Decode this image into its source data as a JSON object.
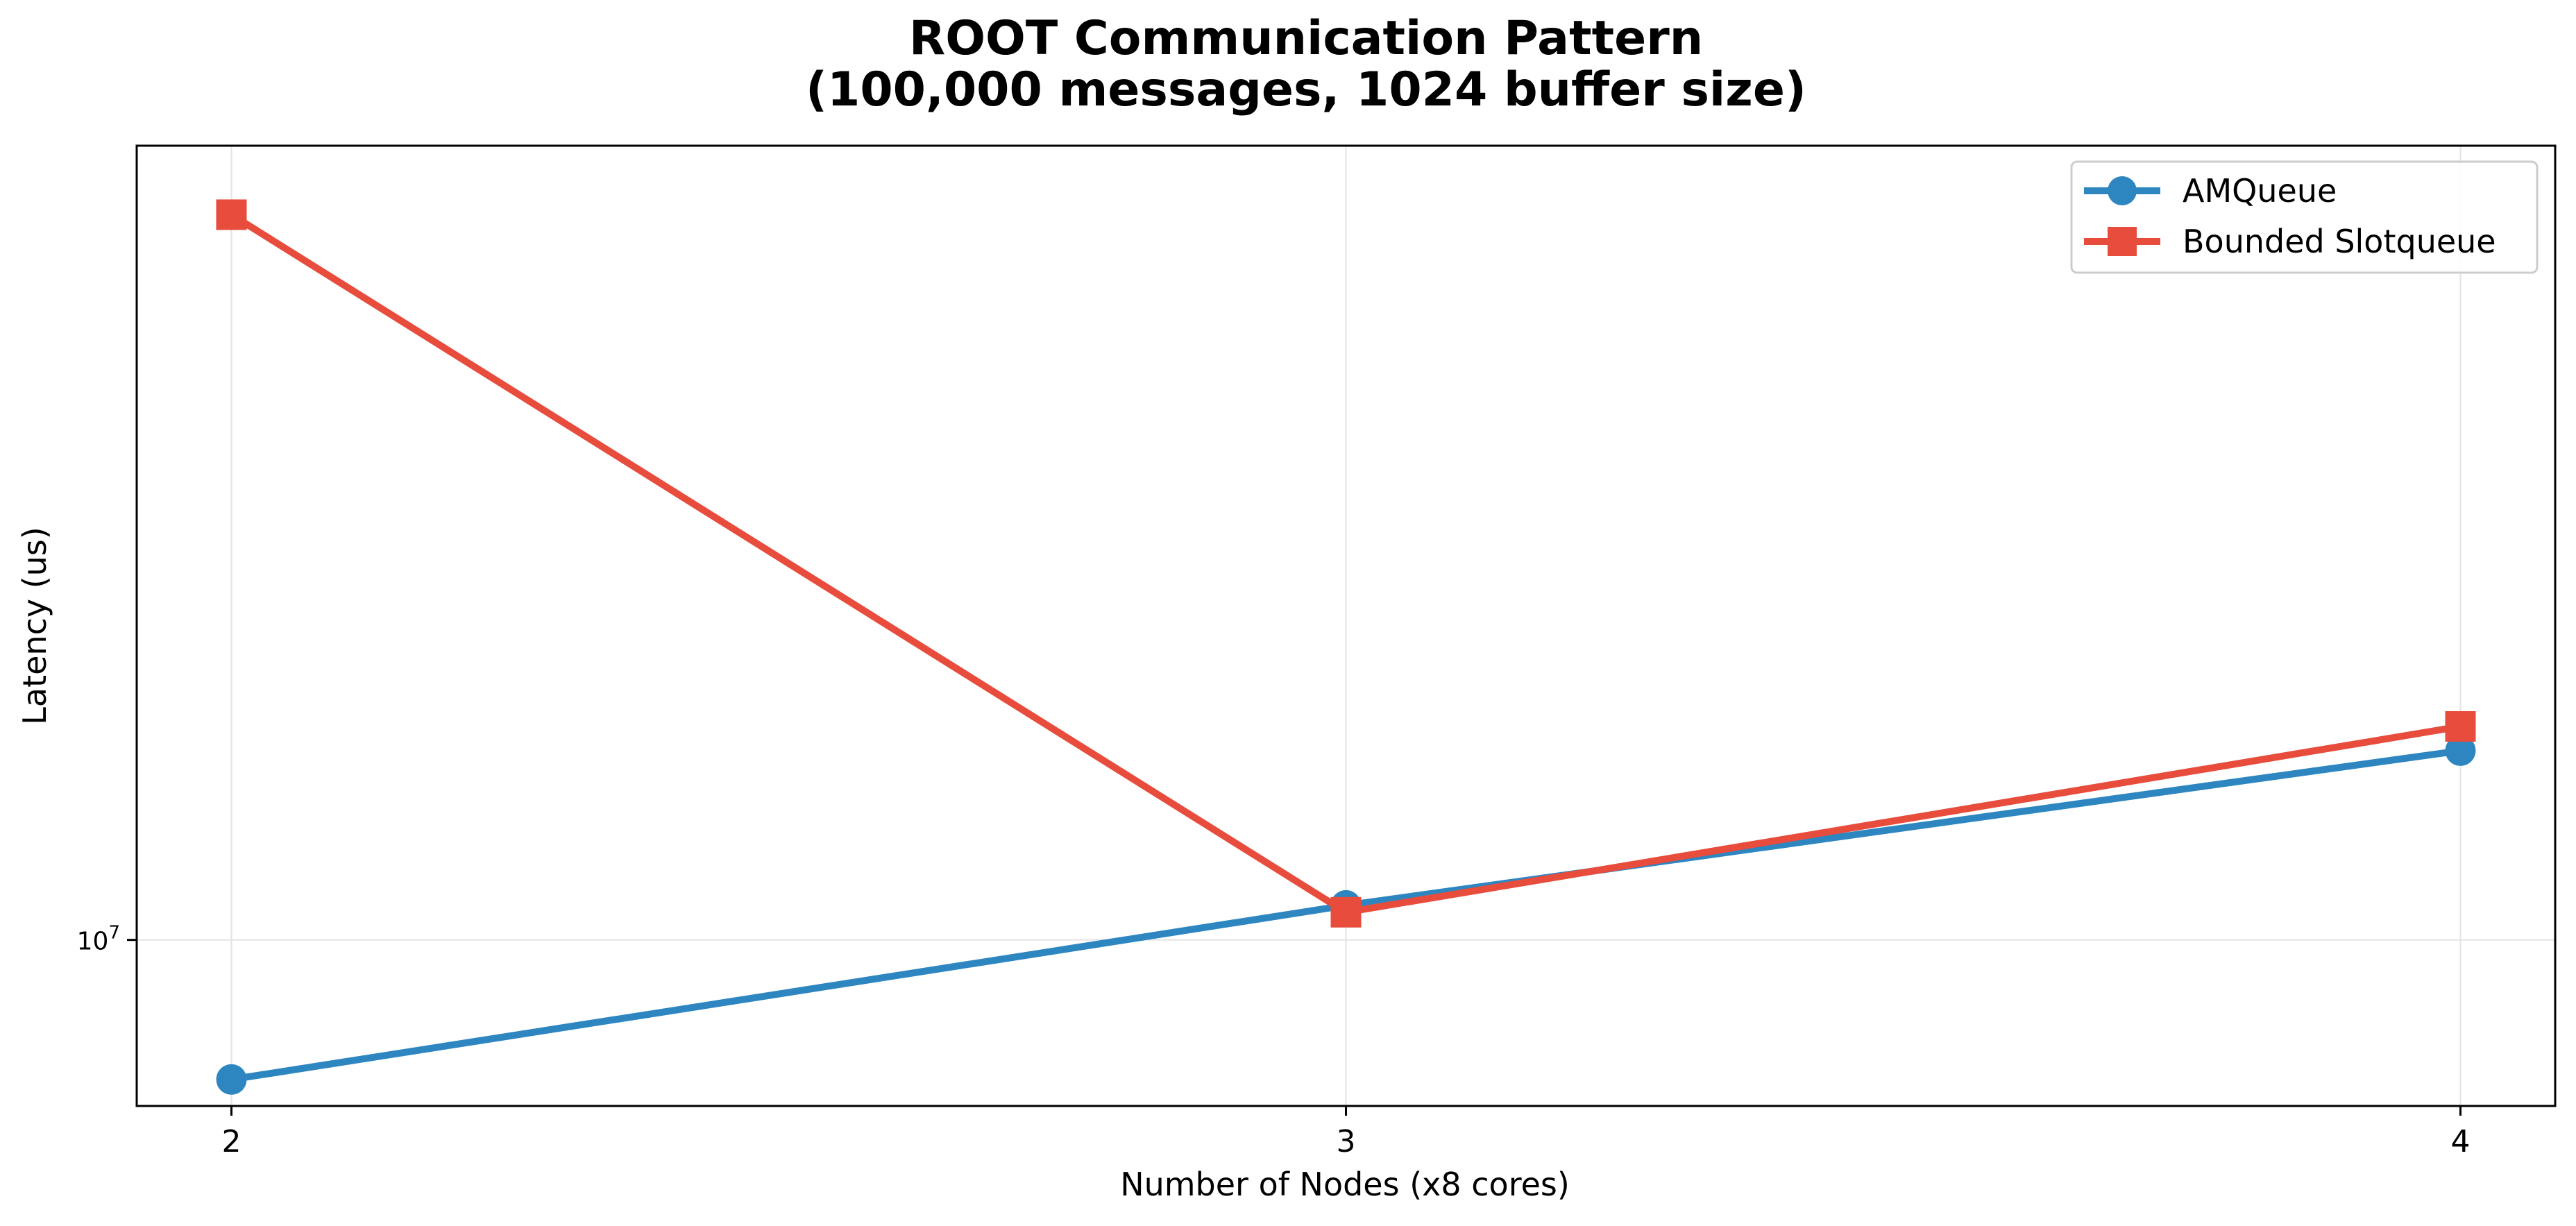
{
  "chart_data": {
    "type": "line",
    "title_line1": "ROOT Communication Pattern",
    "title_line2": "(100,000 messages, 1024 buffer size)",
    "xlabel": "Number of Nodes (x8 cores)",
    "ylabel": "Latency (us)",
    "x": [
      2,
      3,
      4
    ],
    "x_tick_labels": [
      "2",
      "3",
      "4"
    ],
    "xlim": [
      1.915,
      4.085
    ],
    "y_scale": "log",
    "ylim": [
      8880000,
      17650000
    ],
    "y_ticks": [
      {
        "value": 10000000,
        "base": "10",
        "exponent": "7"
      }
    ],
    "grid": true,
    "legend_position": "top-right",
    "series": [
      {
        "name": "AMQueue",
        "color": "#2e86c1",
        "marker": "circle",
        "values": [
          9050000,
          10250000,
          11450000
        ]
      },
      {
        "name": "Bounded Slotqueue",
        "color": "#e74c3c",
        "marker": "square",
        "values": [
          16800000,
          10200000,
          11650000
        ]
      }
    ]
  }
}
